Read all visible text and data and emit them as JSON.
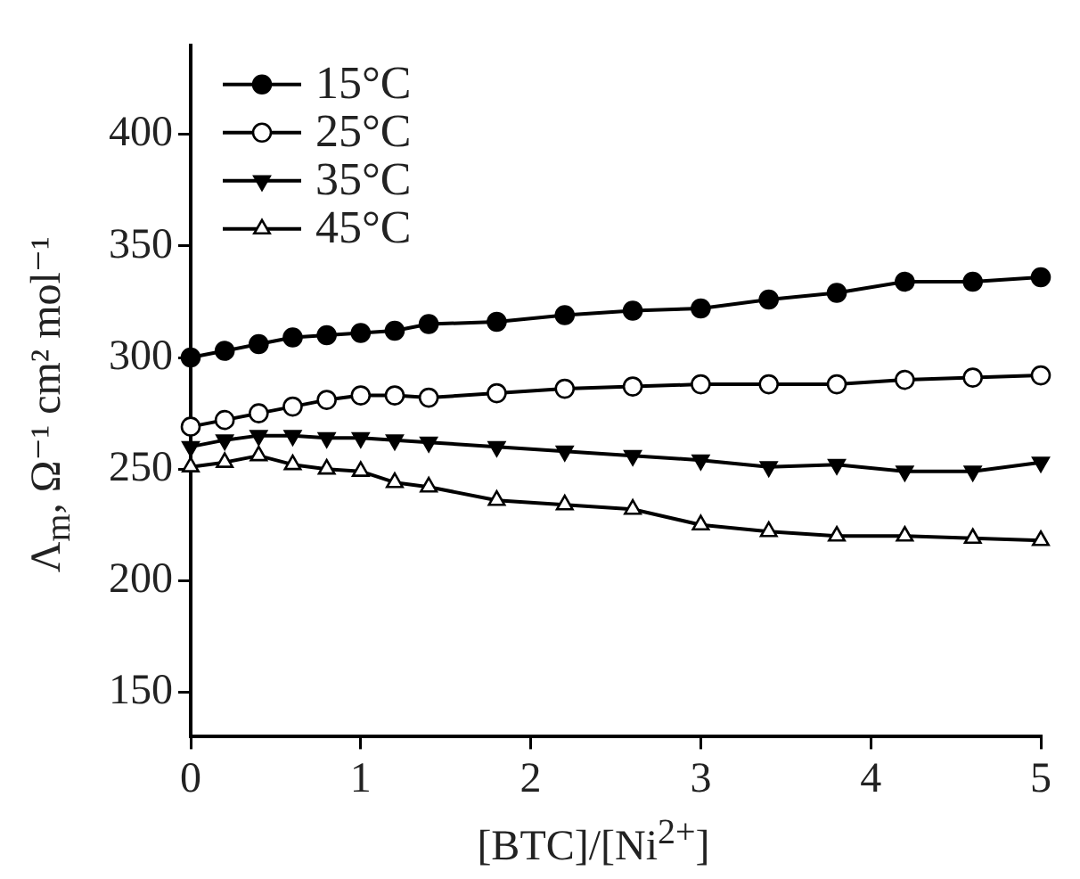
{
  "chart_data": {
    "type": "line",
    "xlabel": "[BTC]/[Ni$^{2+}$]",
    "ylabel": "Λ$_{m}$, Ω⁻¹ cm² mol⁻¹",
    "x": [
      0,
      0.2,
      0.4,
      0.6,
      0.8,
      1,
      1.2,
      1.4,
      1.8,
      2.2,
      2.6,
      3,
      3.4,
      3.8,
      4.2,
      4.6,
      5
    ],
    "series": [
      {
        "name": "15°C",
        "color": "#000000",
        "marker": "circle",
        "values": [
          300,
          303,
          306,
          309,
          310,
          311,
          312,
          315,
          316,
          319,
          321,
          322,
          326,
          329,
          334,
          334,
          336
        ]
      },
      {
        "name": "25°C",
        "color": "#000000",
        "marker": "circle",
        "values": [
          269,
          272,
          275,
          278,
          281,
          283,
          283,
          282,
          284,
          286,
          287,
          288,
          288,
          288,
          290,
          291,
          292
        ]
      },
      {
        "name": "35°C",
        "color": "#000000",
        "marker": "triangle",
        "values": [
          260,
          263,
          265,
          265,
          264,
          264,
          263,
          262,
          260,
          258,
          256,
          254,
          251,
          252,
          249,
          249,
          253
        ]
      },
      {
        "name": "45°C",
        "color": "#000000",
        "marker": "triangle",
        "values": [
          251,
          253,
          256,
          252,
          250,
          249,
          244,
          242,
          236,
          234,
          232,
          225,
          222,
          220,
          220,
          219,
          218
        ]
      }
    ],
    "xlim": [
      0,
      5
    ],
    "xticks": [
      0,
      1,
      2,
      3,
      4,
      5
    ],
    "ylim": [
      130,
      440
    ],
    "yticks": [
      150,
      200,
      250,
      300,
      350,
      400
    ],
    "grid": false,
    "legend": "top left",
    "line_style": "solid"
  }
}
